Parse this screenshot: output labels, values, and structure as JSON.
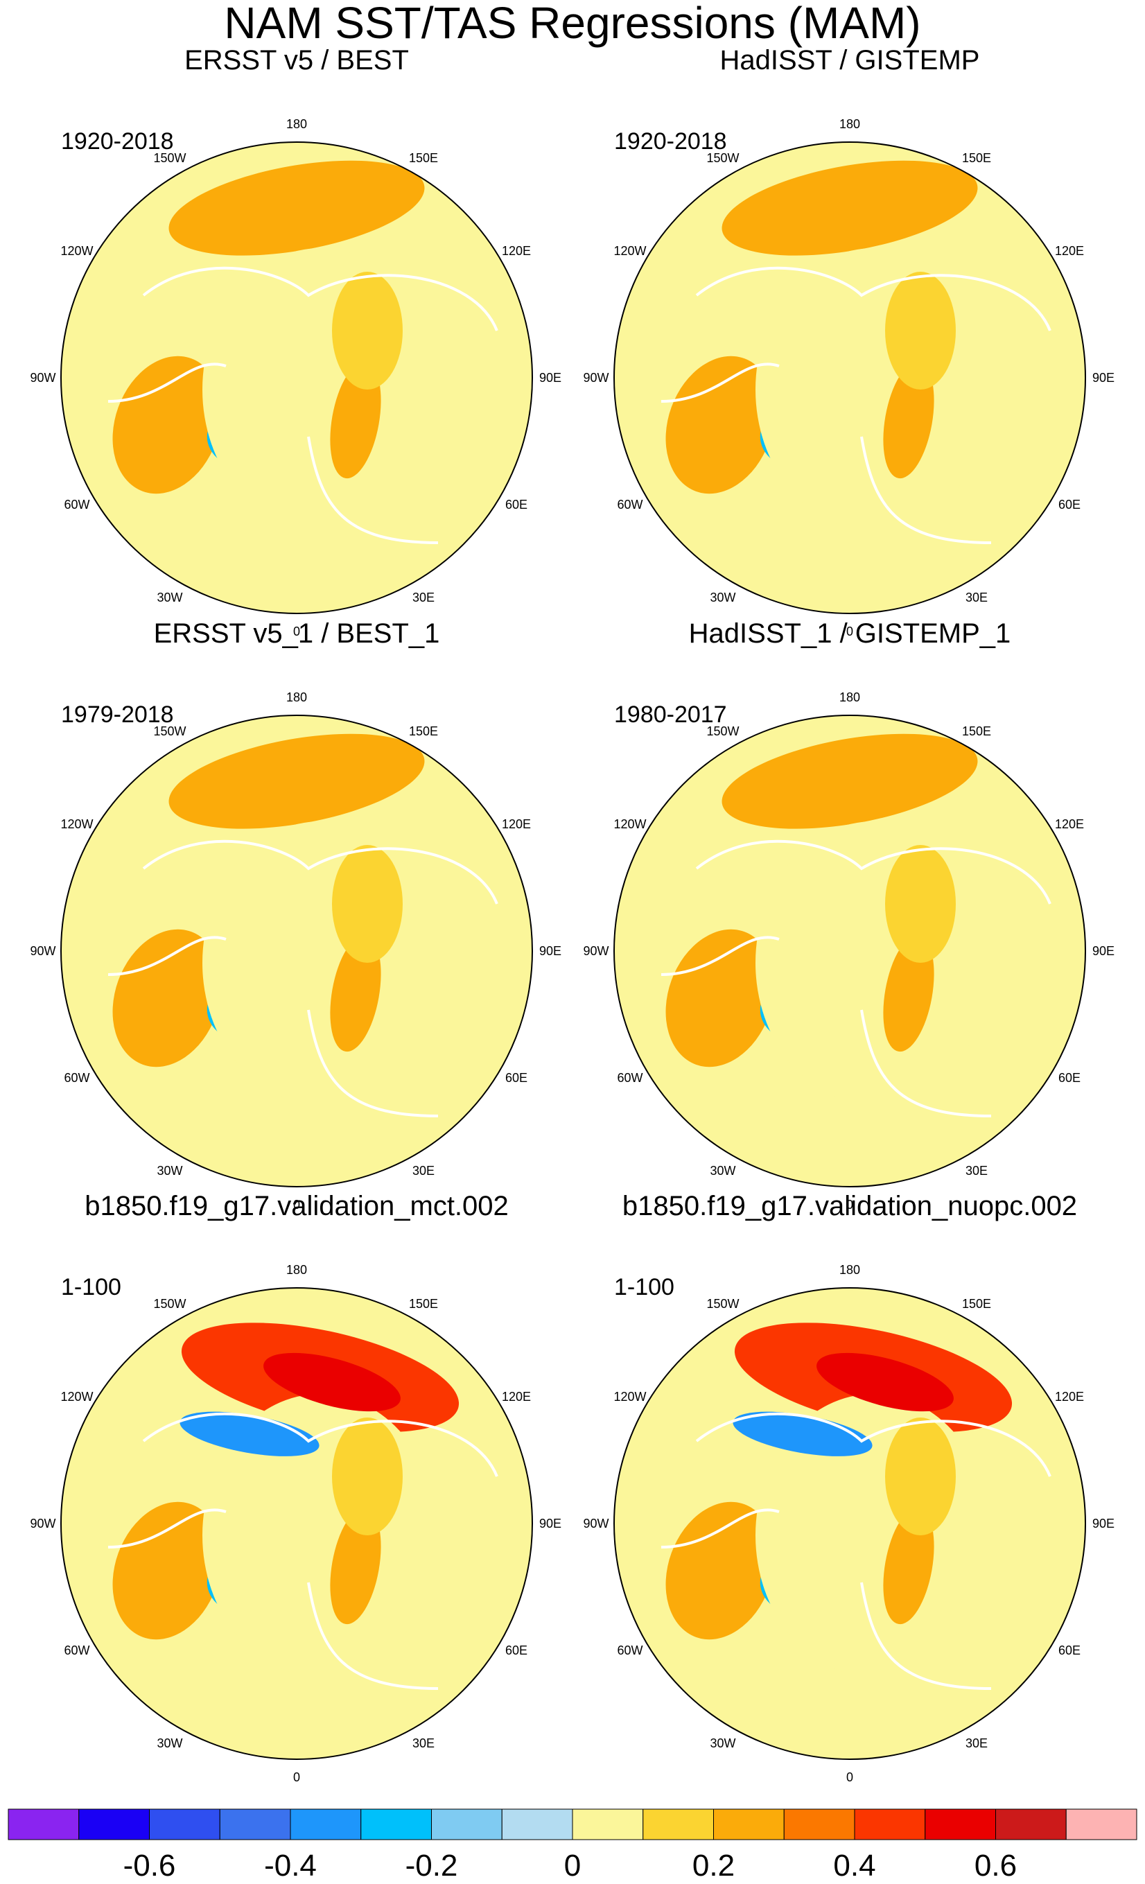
{
  "title": "NAM SST/TAS Regressions (MAM)",
  "lon_labels": [
    "180",
    "150E",
    "120E",
    "90E",
    "60E",
    "30E",
    "0",
    "30W",
    "60W",
    "90W",
    "120W",
    "150W"
  ],
  "panels": [
    {
      "title": "ERSST v5 / BEST",
      "period": "1920-2018"
    },
    {
      "title": "HadISST / GISTEMP",
      "period": "1920-2018"
    },
    {
      "title": "ERSST v5_1 / BEST_1",
      "period": "1979-2018"
    },
    {
      "title": "HadISST_1 / GISTEMP_1",
      "period": "1980-2017"
    },
    {
      "title": "b1850.f19_g17.validation_mct.002",
      "period": "1-100"
    },
    {
      "title": "b1850.f19_g17.validation_nuopc.002",
      "period": "1-100"
    }
  ],
  "colorbar": {
    "colors": [
      "#8a24f0",
      "#1a00f5",
      "#2f4ff0",
      "#3b72ee",
      "#1e96fb",
      "#00c0fb",
      "#7fcbf2",
      "#b3dcf1",
      "#fbf69a",
      "#fbd431",
      "#fbab0a",
      "#fb7800",
      "#fb3600",
      "#ea0000",
      "#cc1a1a",
      "#fdb3b3"
    ],
    "tick_labels": [
      "-0.6",
      "-0.4",
      "-0.2",
      "0",
      "0.2",
      "0.4",
      "0.6"
    ]
  }
}
